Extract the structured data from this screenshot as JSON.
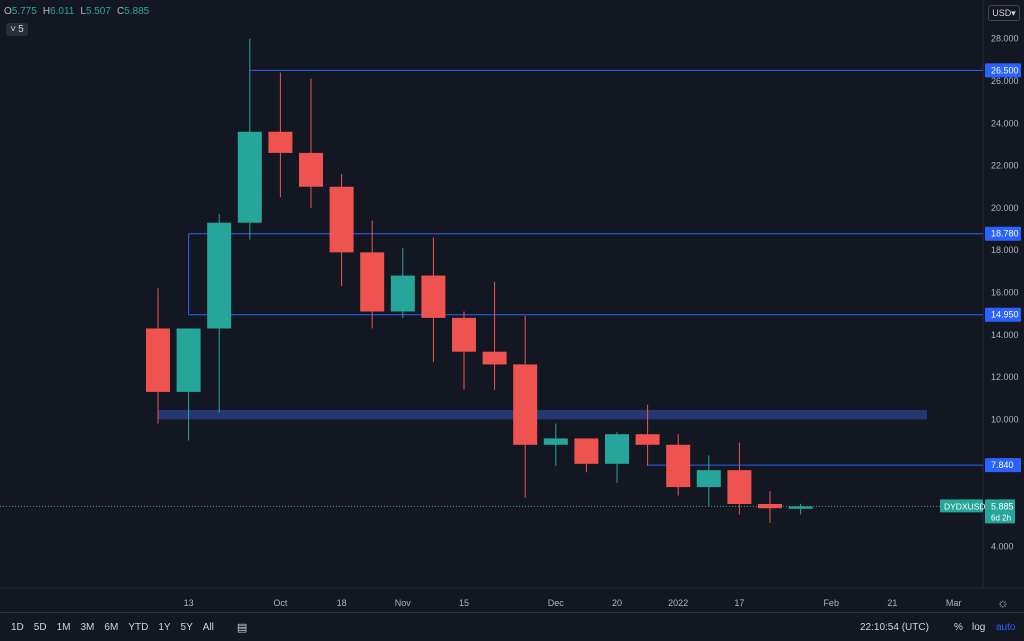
{
  "ohlc": {
    "o_label": "O",
    "o": "5.775",
    "h_label": "H",
    "h": "6.011",
    "l_label": "L",
    "l": "5.507",
    "c_label": "C",
    "c": "5.885"
  },
  "interval": {
    "chevron": "˅",
    "value": "5"
  },
  "currency": "USD",
  "range_buttons": [
    "1D",
    "5D",
    "1M",
    "3M",
    "6M",
    "YTD",
    "1Y",
    "5Y",
    "All"
  ],
  "clock": "22:10:54 (UTC)",
  "scale_options": {
    "percent": "%",
    "log": "log",
    "auto": "auto"
  },
  "colors": {
    "up": "#26a69a",
    "down": "#ef5350",
    "level": "#2962ff",
    "zone": "#283a7a",
    "bg": "#131722"
  },
  "chart_data": {
    "type": "candlestick",
    "symbol": "DYDXUSD",
    "timeframe": "weekly",
    "ylim": [
      3.5,
      30
    ],
    "y_ticks": [
      "4.000",
      "6.000",
      "8.000",
      "10.000",
      "12.000",
      "14.000",
      "16.000",
      "18.000",
      "20.000",
      "22.000",
      "24.000",
      "26.000",
      "28.000"
    ],
    "x_ticks": [
      {
        "index": 1,
        "label": "13"
      },
      {
        "index": 4,
        "label": "Oct"
      },
      {
        "index": 6,
        "label": "18"
      },
      {
        "index": 8,
        "label": "Nov"
      },
      {
        "index": 10,
        "label": "15"
      },
      {
        "index": 13,
        "label": "Dec"
      },
      {
        "index": 15,
        "label": "20"
      },
      {
        "index": 17,
        "label": "2022"
      },
      {
        "index": 19,
        "label": "17"
      },
      {
        "index": 22,
        "label": "Feb"
      },
      {
        "index": 24,
        "label": "21"
      },
      {
        "index": 26,
        "label": "Mar"
      }
    ],
    "candles": [
      {
        "o": 14.3,
        "h": 16.2,
        "l": 9.8,
        "c": 11.3
      },
      {
        "o": 11.3,
        "h": 14.3,
        "l": 9.0,
        "c": 14.3
      },
      {
        "o": 14.3,
        "h": 19.7,
        "l": 10.3,
        "c": 19.3
      },
      {
        "o": 19.3,
        "h": 28.0,
        "l": 18.5,
        "c": 23.6
      },
      {
        "o": 23.6,
        "h": 26.4,
        "l": 20.5,
        "c": 22.6
      },
      {
        "o": 22.6,
        "h": 26.1,
        "l": 20.0,
        "c": 21.0
      },
      {
        "o": 21.0,
        "h": 21.6,
        "l": 16.3,
        "c": 17.9
      },
      {
        "o": 17.9,
        "h": 19.4,
        "l": 14.3,
        "c": 15.1
      },
      {
        "o": 15.1,
        "h": 18.1,
        "l": 14.8,
        "c": 16.8
      },
      {
        "o": 16.8,
        "h": 18.6,
        "l": 12.7,
        "c": 14.8
      },
      {
        "o": 14.8,
        "h": 15.1,
        "l": 11.4,
        "c": 13.2
      },
      {
        "o": 13.2,
        "h": 16.5,
        "l": 11.4,
        "c": 12.6
      },
      {
        "o": 12.6,
        "h": 14.9,
        "l": 6.3,
        "c": 8.8
      },
      {
        "o": 8.8,
        "h": 9.8,
        "l": 7.8,
        "c": 9.1
      },
      {
        "o": 9.1,
        "h": 9.1,
        "l": 7.5,
        "c": 7.9
      },
      {
        "o": 7.9,
        "h": 9.4,
        "l": 7.0,
        "c": 9.3
      },
      {
        "o": 9.3,
        "h": 10.7,
        "l": 7.8,
        "c": 8.8
      },
      {
        "o": 8.8,
        "h": 9.3,
        "l": 6.4,
        "c": 6.8
      },
      {
        "o": 6.8,
        "h": 8.3,
        "l": 5.9,
        "c": 7.6
      },
      {
        "o": 7.6,
        "h": 8.9,
        "l": 5.5,
        "c": 6.0
      },
      {
        "o": 6.0,
        "h": 6.6,
        "l": 5.1,
        "c": 5.8
      },
      {
        "o": 5.775,
        "h": 6.011,
        "l": 5.507,
        "c": 5.885
      }
    ],
    "levels": [
      {
        "price": 26.5,
        "label": "26.500",
        "from_index": 3
      },
      {
        "price": 18.78,
        "label": "18.780",
        "from_index": 1
      },
      {
        "price": 14.95,
        "label": "14.950",
        "from_index": 1
      },
      {
        "price": 7.84,
        "label": "7.840",
        "from_index": 16
      }
    ],
    "zone": {
      "low": 10.0,
      "high": 10.45,
      "from_index": 0,
      "to_index": 25
    },
    "last_price": {
      "label": "5.885",
      "value": 5.885,
      "countdown": "6d 2h",
      "symbol_label": "DYDXUSD"
    }
  }
}
